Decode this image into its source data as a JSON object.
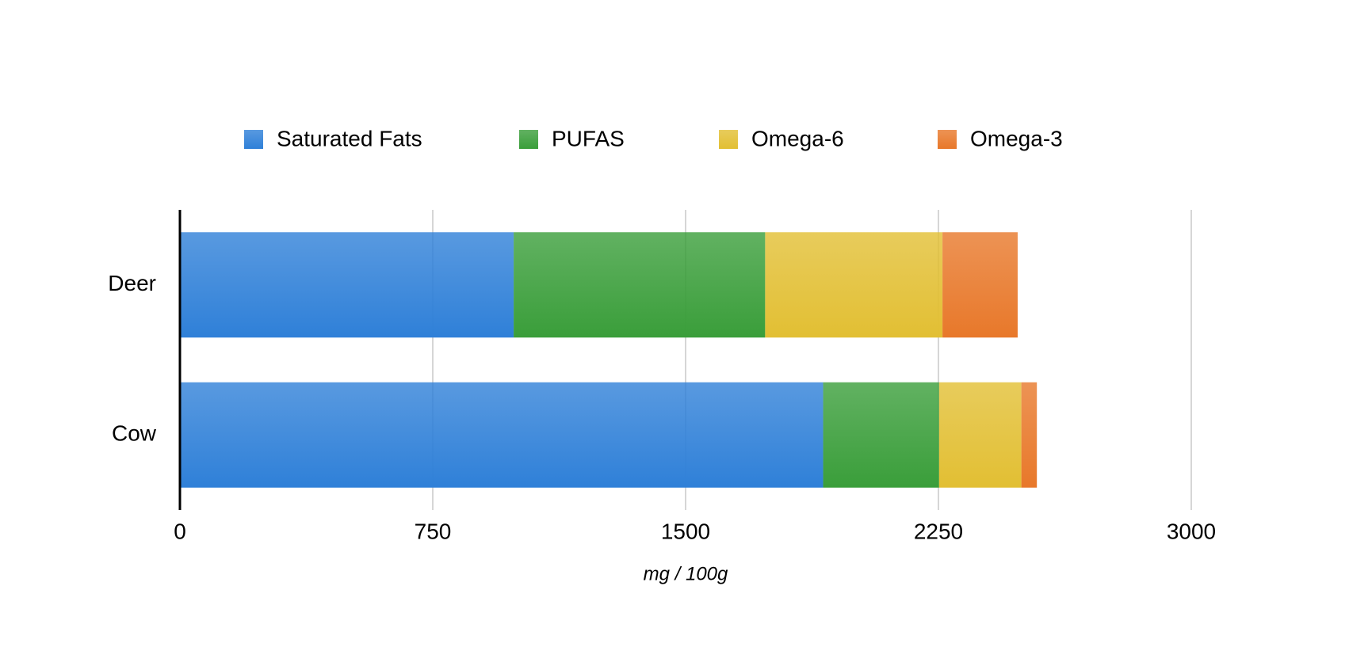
{
  "chart_data": {
    "type": "stacked-bar-horizontal",
    "categories": [
      "Deer",
      "Cow"
    ],
    "series": [
      {
        "name": "Saturated Fats",
        "color": "#2f80d8",
        "values": [
          990,
          1908
        ]
      },
      {
        "name": "PUFAS",
        "color": "#3a9e3a",
        "values": [
          746,
          344
        ]
      },
      {
        "name": "Omega-6",
        "color": "#e2bf33",
        "values": [
          526,
          244
        ]
      },
      {
        "name": "Omega-3",
        "color": "#e8782a",
        "values": [
          223,
          46
        ]
      }
    ],
    "xlabel": "mg / 100g",
    "xlim": [
      0,
      3000
    ],
    "xticks": [
      0,
      750,
      1500,
      2250,
      3000
    ],
    "grid": true,
    "legend": "top"
  }
}
